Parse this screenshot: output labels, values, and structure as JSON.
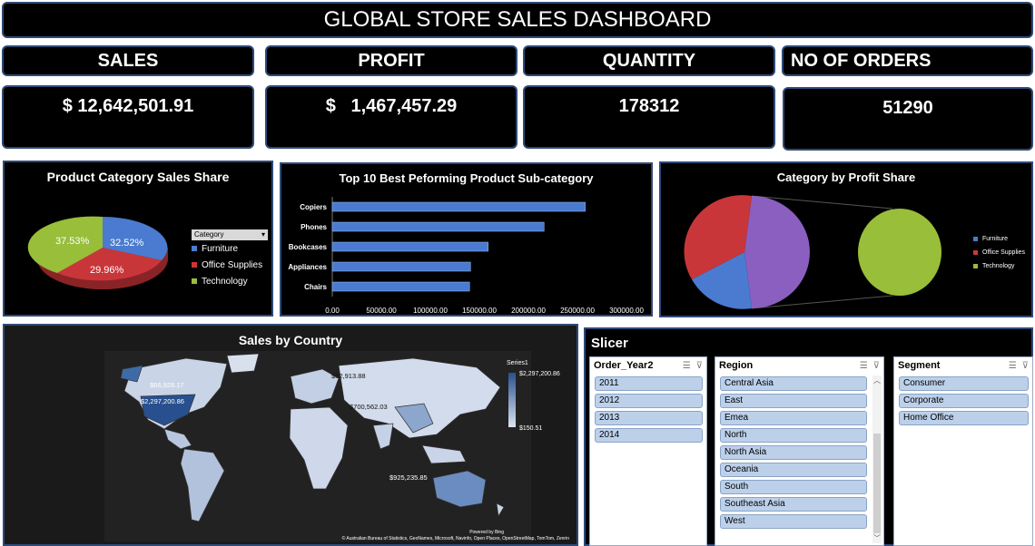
{
  "title": "GLOBAL STORE SALES DASHBOARD",
  "kpis": [
    {
      "label": "SALES",
      "value": "$ 12,642,501.91"
    },
    {
      "label": "PROFIT",
      "value": "$   1,467,457.29"
    },
    {
      "label": "QUANTITY",
      "value": "178312"
    },
    {
      "label": "NO OF ORDERS",
      "value": "51290"
    }
  ],
  "pie_sales": {
    "title": "Product Category Sales Share",
    "legend_title": "Category",
    "slices": [
      {
        "name": "Furniture",
        "value": 32.52,
        "label": "32.52%",
        "color": "#4a7bd0"
      },
      {
        "name": "Office Supplies",
        "value": 29.96,
        "label": "29.96%",
        "color": "#c9363a"
      },
      {
        "name": "Technology",
        "value": 37.53,
        "label": "37.53%",
        "color": "#98be3a"
      }
    ]
  },
  "bar_chart": {
    "title": "Top 10 Best Peforming Product Sub-category",
    "chart_data": {
      "type": "bar",
      "orientation": "horizontal",
      "categories": [
        "Copiers",
        "Phones",
        "Bookcases",
        "Appliances",
        "Chairs"
      ],
      "values": [
        258000,
        216000,
        159000,
        141000,
        140000
      ],
      "xlim": [
        0,
        300000
      ],
      "ticks": [
        "0.00",
        "50000.00",
        "100000.00",
        "150000.00",
        "200000.00",
        "250000.00",
        "300000.00"
      ],
      "color": "#4a7bd0"
    }
  },
  "pie_profit": {
    "title": "Category by Profit Share",
    "legend": [
      {
        "name": "Furniture",
        "color": "#4a7bd0"
      },
      {
        "name": "Office Supplies",
        "color": "#c9363a"
      },
      {
        "name": "Technology",
        "color": "#98be3a"
      }
    ]
  },
  "map": {
    "title": "Sales by Country",
    "series_label": "Series1",
    "max_label": "$2,297,200.86",
    "min_label": "$150.51",
    "labels": [
      "$66,928.17",
      "$2,297,200.86",
      "$82,913.88",
      "$700,562.03",
      "$925,235.85"
    ],
    "powered": "Powered by Bing",
    "credits": "© Australian Bureau of Statistics, GeoNames, Microsoft, Navinfo, Open Places, OpenStreetMap, TomTom, Zenrin"
  },
  "slicer": {
    "title": "Slicer",
    "panels": [
      {
        "header": "Order_Year2",
        "items": [
          "2011",
          "2012",
          "2013",
          "2014"
        ]
      },
      {
        "header": "Region",
        "items": [
          "Central Asia",
          "East",
          "Emea",
          "North",
          "North Asia",
          "Oceania",
          "South",
          "Southeast Asia",
          "West"
        ]
      },
      {
        "header": "Segment",
        "items": [
          "Consumer",
          "Corporate",
          "Home Office"
        ]
      }
    ]
  }
}
